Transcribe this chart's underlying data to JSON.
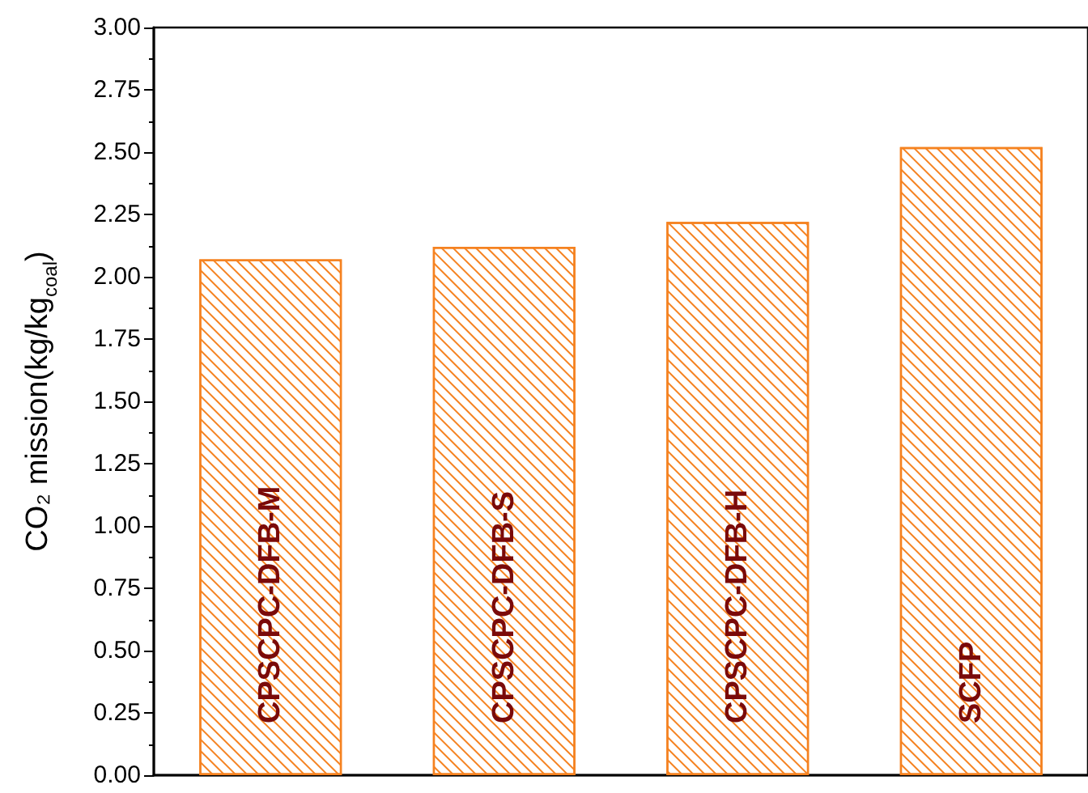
{
  "chart_data": {
    "type": "bar",
    "ylabel": "CO₂ mission(kg/kg$_{coal}$)",
    "categories": [
      "CPSCPC-DFB-M",
      "CPSCPC-DFB-S",
      "CPSCPC-DFB-H",
      "SCFP"
    ],
    "values": [
      2.07,
      2.12,
      2.22,
      2.52
    ],
    "color": "#f58220",
    "ylim": [
      0,
      3
    ],
    "yticks": [
      {
        "value": 0,
        "label": "0.00"
      },
      0.25,
      {
        "value": 0.5,
        "label": "0.50"
      },
      0.75,
      {
        "value": 1,
        "label": "1.00"
      },
      1.25,
      {
        "value": 1.5,
        "label": "1.50"
      },
      1.75,
      {
        "value": 2,
        "label": "2.00"
      },
      2.25,
      {
        "value": 2.5,
        "label": "2.50"
      },
      2.75,
      {
        "value": 3,
        "label": "3.00"
      }
    ],
    "grid": false
  }
}
